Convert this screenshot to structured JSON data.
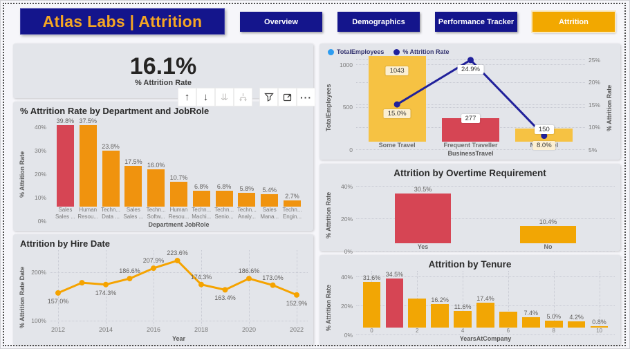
{
  "header": {
    "title": "Atlas Labs | Attrition",
    "nav": [
      {
        "label": "Overview",
        "active": false
      },
      {
        "label": "Demographics",
        "active": false
      },
      {
        "label": "Performance Tracker",
        "active": false
      },
      {
        "label": "Attrition",
        "active": true
      }
    ]
  },
  "kpi": {
    "value": "16.1%",
    "label": "% Attrition Rate"
  },
  "toolbar": {
    "buttons": [
      {
        "name": "drill-up",
        "glyph": "arrow-up",
        "enabled": true
      },
      {
        "name": "drill-down",
        "glyph": "arrow-down",
        "enabled": true
      },
      {
        "name": "go-to-next-level",
        "glyph": "double-arrow-down",
        "enabled": false
      },
      {
        "name": "expand-all-down",
        "glyph": "expand-tree",
        "enabled": false
      },
      {
        "name": "filters",
        "glyph": "funnel",
        "enabled": true
      },
      {
        "name": "focus-mode",
        "glyph": "focus",
        "enabled": true
      },
      {
        "name": "more-options",
        "glyph": "ellipsis",
        "enabled": true
      }
    ]
  },
  "colors": {
    "navy": "#14158C",
    "gold": "#F2A800",
    "title_gold": "#F5A623",
    "red": "#D64554",
    "orange": "#F0930E",
    "amber": "#F2A604",
    "gold_bar": "#F6C243",
    "line_navy": "#21219B",
    "line_orange": "#F5A300",
    "legend_blue": "#2D9CF0",
    "card_bg": "#E3E5EA",
    "page_bg": "#F6F6FA"
  },
  "chart_data": [
    {
      "id": "dept",
      "type": "bar",
      "title": "% Attrition Rate by Department and JobRole",
      "ylabel": "% Attrition Rate",
      "xlabel": "Department JobRole",
      "ylim": [
        0,
        44
      ],
      "yticks": [
        {
          "v": 40,
          "label": "40%"
        },
        {
          "v": 30,
          "label": "30%"
        },
        {
          "v": 20,
          "label": "20%"
        },
        {
          "v": 10,
          "label": "10%"
        },
        {
          "v": 0,
          "label": "0%"
        }
      ],
      "values": [
        39.8,
        37.5,
        23.8,
        17.5,
        16.0,
        10.7,
        6.8,
        6.8,
        5.8,
        5.4,
        2.7
      ],
      "labels": [
        "39.8%",
        "37.5%",
        "23.8%",
        "17.5%",
        "16.0%",
        "10.7%",
        "6.8%",
        "6.8%",
        "5.8%",
        "5.4%",
        "2.7%"
      ],
      "bar_colors": [
        "red",
        "orange",
        "orange",
        "orange",
        "orange",
        "orange",
        "orange",
        "orange",
        "orange",
        "orange",
        "orange"
      ],
      "bar_width": "76%",
      "xcells": [
        [
          "Sales",
          "Sales ..."
        ],
        [
          "Human",
          "Resou..."
        ],
        [
          "Techn...",
          "Data ..."
        ],
        [
          "Sales",
          "Sales ..."
        ],
        [
          "Techn...",
          "Softw..."
        ],
        [
          "Human",
          "Resou..."
        ],
        [
          "Techn...",
          "Machi..."
        ],
        [
          "Techn...",
          "Senio..."
        ],
        [
          "Techn...",
          "Analy..."
        ],
        [
          "Sales",
          "Mana..."
        ],
        [
          "Techn...",
          "Engin..."
        ]
      ],
      "grid": false
    },
    {
      "id": "hire",
      "type": "line",
      "title": "Attrition by Hire Date",
      "ylabel": "% Attrition Rate Date",
      "xlabel": "Year",
      "ylim": [
        90,
        245
      ],
      "yticks": [
        {
          "v": 200,
          "label": "200%"
        },
        {
          "v": 100,
          "label": "100%"
        }
      ],
      "x": [
        2012,
        2013,
        2014,
        2015,
        2016,
        2017,
        2018,
        2019,
        2020,
        2021,
        2022
      ],
      "values": [
        157.0,
        178.0,
        174.3,
        186.6,
        207.9,
        223.6,
        174.3,
        163.4,
        186.6,
        173.0,
        152.9
      ],
      "labels": [
        "157.0%",
        "",
        "174.3%",
        "186.6%",
        "207.9%",
        "223.6%",
        "174.3%",
        "163.4%",
        "186.6%",
        "173.0%",
        "152.9%"
      ],
      "label_pos": [
        "below",
        "none",
        "below",
        "above",
        "above",
        "above",
        "above",
        "below",
        "above",
        "above",
        "below"
      ],
      "xticks": [
        2012,
        2014,
        2016,
        2018,
        2020,
        2022
      ],
      "grid": true
    },
    {
      "id": "travel",
      "type": "combo",
      "legend": [
        {
          "name": "TotalEmployees",
          "color": "legend_blue"
        },
        {
          "name": "% Attrition Rate",
          "color": "line_navy"
        }
      ],
      "ylabel_left": "TotalEmployees",
      "ylabel_right": "% Attrition Rate",
      "xlabel": "BusinessTravel",
      "categories": [
        "Some Travel",
        "Frequent Traveller",
        "No Travel"
      ],
      "bar_values": [
        1043,
        277,
        150
      ],
      "bar_labels": [
        "1043",
        "277",
        "150"
      ],
      "bar_label_inside": [
        true,
        false,
        false
      ],
      "bar_label_bg": [
        "#FBEFD2",
        "#FFFFFF",
        "#FFFFFF"
      ],
      "bar_colors": [
        "gold_bar",
        "red",
        "gold_bar"
      ],
      "line_values": [
        15.0,
        24.9,
        8.0
      ],
      "line_labels": [
        "15.0%",
        "24.9%",
        "8.0%"
      ],
      "line_label_bg": [
        "#FBEFD2",
        "#FFFFFF",
        "#FBEFD2"
      ],
      "ylim_left": [
        0,
        1100
      ],
      "ylim_right": [
        5,
        25.8
      ],
      "yticks_left": [
        {
          "v": 1000,
          "label": "1000"
        },
        {
          "v": 500,
          "label": "500"
        },
        {
          "v": 0,
          "label": "0"
        }
      ],
      "yticks_right": [
        {
          "v": 25,
          "label": "25%"
        },
        {
          "v": 20,
          "label": "20%"
        },
        {
          "v": 15,
          "label": "15%"
        },
        {
          "v": 10,
          "label": "10%"
        },
        {
          "v": 5,
          "label": "5%"
        }
      ],
      "bar_width": "78%",
      "grid": true
    },
    {
      "id": "overtime",
      "type": "bar",
      "title": "Attrition by Overtime Requirement",
      "ylabel": "% Attrition Rate",
      "ylim": [
        0,
        44
      ],
      "yticks": [
        {
          "v": 40,
          "label": "40%"
        },
        {
          "v": 20,
          "label": "20%"
        },
        {
          "v": 0,
          "label": "0%"
        }
      ],
      "values": [
        30.5,
        10.4
      ],
      "labels": [
        "30.5%",
        "10.4%"
      ],
      "bar_colors": [
        "red",
        "amber"
      ],
      "bar_width": "45%",
      "xcells": [
        "Yes",
        "No"
      ],
      "grid": true
    },
    {
      "id": "tenure",
      "type": "bar",
      "title": "Attrition by Tenure",
      "ylabel": "% Attrition Rate",
      "xlabel": "YearsAtCompany",
      "ylim": [
        0,
        44
      ],
      "yticks": [
        {
          "v": 40,
          "label": "40%"
        },
        {
          "v": 20,
          "label": "20%"
        },
        {
          "v": 0,
          "label": "0%"
        }
      ],
      "values": [
        31.6,
        34.5,
        20.3,
        16.2,
        11.6,
        17.4,
        11.2,
        7.4,
        5.0,
        4.2,
        0.8
      ],
      "labels": [
        "31.6%",
        "34.5%",
        "",
        "16.2%",
        "11.6%",
        "17.4%",
        "",
        "7.4%",
        "5.0%",
        "4.2%",
        "0.8%"
      ],
      "bar_colors": [
        "amber",
        "red",
        "amber",
        "amber",
        "amber",
        "amber",
        "amber",
        "amber",
        "amber",
        "amber",
        "amber"
      ],
      "bar_width": "78%",
      "xcells": [
        "0",
        "",
        "2",
        "",
        "4",
        "",
        "6",
        "",
        "8",
        "",
        "10"
      ],
      "grid": true,
      "vgrid_even": true
    }
  ]
}
